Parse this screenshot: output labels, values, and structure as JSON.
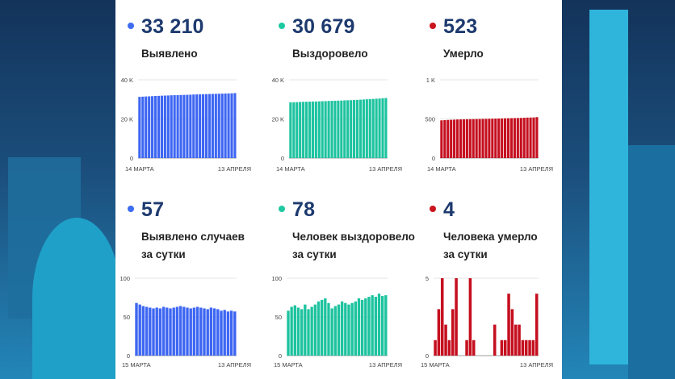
{
  "colors": {
    "blue": "#3d66f2",
    "teal": "#1dc39f",
    "red": "#c50f1f",
    "dot_blue": "#3d6cf0",
    "dot_teal": "#1ec9a2",
    "dot_red": "#c9141d"
  },
  "cards": [
    {
      "value": "33 210",
      "label": [
        "Выявлено"
      ],
      "color": "blue"
    },
    {
      "value": "30 679",
      "label": [
        "Выздоровело"
      ],
      "color": "teal"
    },
    {
      "value": "523",
      "label": [
        "Умерло"
      ],
      "color": "red"
    },
    {
      "value": "57",
      "label": [
        "Выявлено случаев",
        "за сутки"
      ],
      "color": "blue"
    },
    {
      "value": "78",
      "label": [
        "Человек выздоровело",
        "за сутки"
      ],
      "color": "teal"
    },
    {
      "value": "4",
      "label": [
        "Человека умерло",
        "за сутки"
      ],
      "color": "red"
    }
  ],
  "chart_data": [
    {
      "type": "bar",
      "ylim": [
        0,
        40000
      ],
      "yticks": [
        "0",
        "20 K",
        "40 K"
      ],
      "xstart": "14 МАРТА",
      "xend": "13 АПРЕЛЯ",
      "values": [
        31300,
        31400,
        31500,
        31550,
        31650,
        31750,
        31800,
        31900,
        31950,
        32000,
        32100,
        32150,
        32200,
        32250,
        32300,
        32350,
        32400,
        32500,
        32550,
        32600,
        32650,
        32700,
        32750,
        32800,
        32850,
        32900,
        32950,
        33000,
        33050,
        33120,
        33210
      ]
    },
    {
      "type": "bar",
      "ylim": [
        0,
        40000
      ],
      "yticks": [
        "0",
        "20 K",
        "40 K"
      ],
      "xstart": "14 МАРТА",
      "xend": "13 АПРЕЛЯ",
      "values": [
        28500,
        28550,
        28600,
        28700,
        28750,
        28800,
        28850,
        28900,
        28950,
        29000,
        29050,
        29100,
        29200,
        29250,
        29300,
        29350,
        29400,
        29500,
        29550,
        29600,
        29700,
        29750,
        29850,
        29950,
        30050,
        30150,
        30250,
        30350,
        30450,
        30600,
        30679
      ]
    },
    {
      "type": "bar",
      "ylim": [
        0,
        1000
      ],
      "yticks": [
        "0",
        "500",
        "1 K"
      ],
      "xstart": "14 МАРТА",
      "xend": "13 АПРЕЛЯ",
      "values": [
        482,
        485,
        487,
        489,
        491,
        493,
        494,
        495,
        496,
        497,
        498,
        499,
        500,
        501,
        502,
        503,
        504,
        505,
        506,
        507,
        508,
        509,
        510,
        511,
        512,
        513,
        515,
        517,
        518,
        519,
        523
      ]
    },
    {
      "type": "bar",
      "ylim": [
        0,
        100
      ],
      "yticks": [
        "0",
        "50",
        "100"
      ],
      "xstart": "15 МАРТА",
      "xend": "13 АПРЕЛЯ",
      "values": [
        68,
        66,
        64,
        63,
        62,
        61,
        62,
        61,
        63,
        62,
        61,
        62,
        63,
        64,
        63,
        62,
        61,
        62,
        63,
        62,
        61,
        60,
        62,
        61,
        60,
        58,
        59,
        57,
        58,
        57
      ]
    },
    {
      "type": "bar",
      "ylim": [
        0,
        100
      ],
      "yticks": [
        "0",
        "50",
        "100"
      ],
      "xstart": "15 МАРТА",
      "xend": "13 АПРЕЛЯ",
      "values": [
        58,
        63,
        65,
        62,
        60,
        66,
        60,
        63,
        66,
        70,
        72,
        74,
        68,
        61,
        64,
        66,
        70,
        68,
        66,
        68,
        70,
        74,
        72,
        74,
        76,
        78,
        76,
        80,
        77,
        78
      ]
    },
    {
      "type": "bar",
      "ylim": [
        0,
        5
      ],
      "yticks": [
        "0",
        "5"
      ],
      "xstart": "15 МАРТА",
      "xend": "13 АПРЕЛЯ",
      "values": [
        1,
        3,
        5,
        2,
        1,
        3,
        5,
        0,
        0,
        1,
        5,
        1,
        0,
        0,
        0,
        0,
        0,
        2,
        0,
        1,
        1,
        4,
        3,
        2,
        2,
        1,
        1,
        1,
        1,
        4
      ]
    }
  ]
}
